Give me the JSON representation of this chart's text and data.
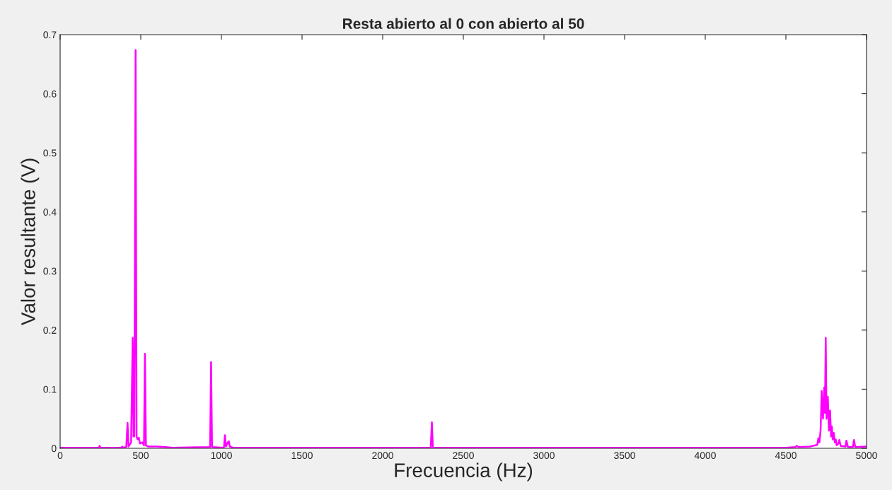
{
  "chart_data": {
    "type": "line",
    "title": "Resta abierto al 0 con abierto al 50",
    "xlabel": "Frecuencia (Hz)",
    "ylabel": "Valor resultante (V)",
    "series": [
      {
        "color": "#ff00ff",
        "x": [
          0,
          240,
          245,
          250,
          380,
          385,
          390,
          410,
          418,
          424,
          440,
          450,
          455,
          460,
          468,
          474,
          480,
          488,
          495,
          510,
          520,
          526,
          532,
          545,
          600,
          650,
          700,
          930,
          936,
          942,
          1010,
          1016,
          1022,
          1028,
          1040,
          1046,
          1052,
          1070,
          1500,
          2000,
          2298,
          2305,
          2311,
          3000,
          3500,
          4000,
          4500,
          4560,
          4566,
          4580,
          4650,
          4695,
          4701,
          4708,
          4715,
          4722,
          4730,
          4738,
          4742,
          4747,
          4752,
          4760,
          4767,
          4774,
          4780,
          4785,
          4790,
          4797,
          4803,
          4809,
          4815,
          4825,
          4831,
          4840,
          4870,
          4875,
          4885,
          4915,
          4922,
          4930,
          5000
        ],
        "values": [
          0.001,
          0.001,
          0.004,
          0.001,
          0.001,
          0.003,
          0.001,
          0.002,
          0.043,
          0.003,
          0.01,
          0.187,
          0.02,
          0.02,
          0.674,
          0.02,
          0.015,
          0.018,
          0.008,
          0.01,
          0.005,
          0.16,
          0.005,
          0.003,
          0.003,
          0.002,
          0.001,
          0.002,
          0.146,
          0.002,
          0.001,
          0.002,
          0.022,
          0.003,
          0.01,
          0.012,
          0.003,
          0.001,
          0.001,
          0.001,
          0.001,
          0.044,
          0.001,
          0.001,
          0.001,
          0.001,
          0.001,
          0.002,
          0.004,
          0.002,
          0.003,
          0.006,
          0.017,
          0.01,
          0.03,
          0.097,
          0.05,
          0.103,
          0.06,
          0.187,
          0.05,
          0.087,
          0.03,
          0.064,
          0.02,
          0.037,
          0.015,
          0.026,
          0.01,
          0.015,
          0.005,
          0.008,
          0.014,
          0.004,
          0.003,
          0.013,
          0.002,
          0.002,
          0.014,
          0.002,
          0.003
        ]
      }
    ],
    "xlim": [
      0,
      5000
    ],
    "xticks": [
      0,
      500,
      1000,
      1500,
      2000,
      2500,
      3000,
      3500,
      4000,
      4500,
      5000
    ],
    "ylim": [
      0,
      0.7
    ],
    "yticks": [
      0,
      0.1,
      0.2,
      0.3,
      0.4,
      0.5,
      0.6,
      0.7
    ],
    "grid": false,
    "marker": "none",
    "line_style": "solid"
  }
}
